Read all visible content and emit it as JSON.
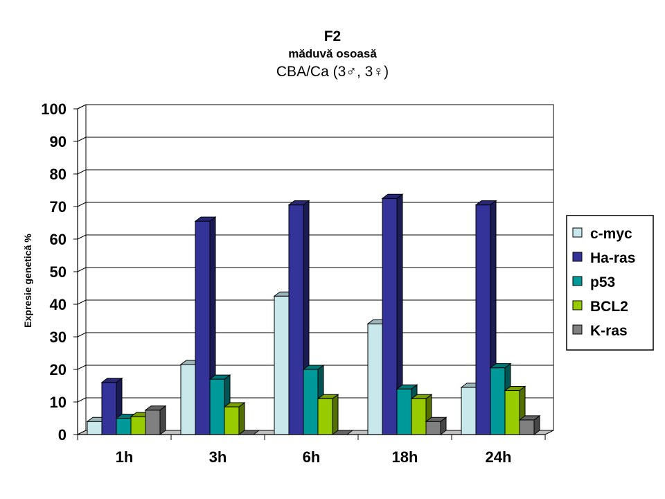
{
  "chart_data": {
    "type": "bar",
    "title": "F2",
    "subtitle": "măduvă osoasă",
    "subtitle2": "CBA/Ca (3♂, 3♀)",
    "xlabel": "",
    "ylabel": "Expresie genetică %",
    "ylim": [
      0,
      100
    ],
    "yticks": [
      0,
      10,
      20,
      30,
      40,
      50,
      60,
      70,
      80,
      90,
      100
    ],
    "grid": true,
    "legend": "right",
    "categories": [
      "1h",
      "3h",
      "6h",
      "18h",
      "24h"
    ],
    "series": [
      {
        "name": "c-myc",
        "color": "#c8e8ec",
        "values": [
          4,
          21.5,
          42.5,
          34,
          14.5
        ]
      },
      {
        "name": "Ha-ras",
        "color": "#333399",
        "values": [
          16,
          65.5,
          70.5,
          72.5,
          70.5
        ]
      },
      {
        "name": "p53",
        "color": "#009999",
        "values": [
          5,
          17,
          20,
          14,
          20.5
        ]
      },
      {
        "name": "BCL2",
        "color": "#99cc00",
        "values": [
          5.5,
          8.5,
          11,
          11,
          13.5
        ]
      },
      {
        "name": "K-ras",
        "color": "#808080",
        "values": [
          7.5,
          0,
          0,
          4,
          4.5
        ]
      }
    ]
  }
}
